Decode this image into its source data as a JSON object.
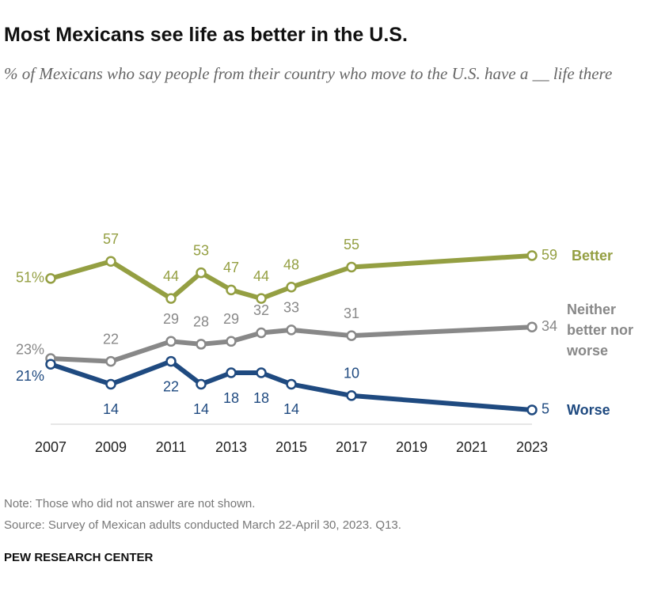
{
  "chart_data": {
    "type": "line",
    "title": "Most Mexicans see life as better in the U.S.",
    "subtitle": "% of Mexicans who say people from their country who move to the U.S. have a __ life there",
    "x": [
      2007,
      2009,
      2011,
      2012,
      2013,
      2014,
      2015,
      2017,
      2023
    ],
    "series": [
      {
        "name": "Better",
        "color": "#949f42",
        "values": [
          51,
          57,
          44,
          53,
          47,
          44,
          48,
          55,
          59
        ],
        "value_labels": [
          "51%",
          "57",
          "44",
          "53",
          "47",
          "44",
          "48",
          "55",
          "59"
        ]
      },
      {
        "name": "Neither better nor worse",
        "color": "#888888",
        "values": [
          23,
          22,
          29,
          28,
          29,
          32,
          33,
          31,
          34
        ],
        "value_labels": [
          "23%",
          "22",
          "29",
          "28",
          "29",
          "32",
          "33",
          "31",
          "34"
        ]
      },
      {
        "name": "Worse",
        "color": "#1f4a80",
        "values": [
          21,
          14,
          22,
          14,
          18,
          18,
          14,
          10,
          5
        ],
        "value_labels": [
          "21%",
          "14",
          "22",
          "14",
          "18",
          "18",
          "14",
          "10",
          "5"
        ]
      }
    ],
    "xlim": [
      2007,
      2023
    ],
    "xticks": [
      2007,
      2009,
      2011,
      2013,
      2015,
      2017,
      2019,
      2021,
      2023
    ],
    "ylim": [
      0,
      100
    ],
    "note": "Note: Those who did not answer are not shown.",
    "source": "Source: Survey of Mexican adults conducted March 22-April 30, 2023. Q13.",
    "brand": "PEW RESEARCH CENTER"
  }
}
